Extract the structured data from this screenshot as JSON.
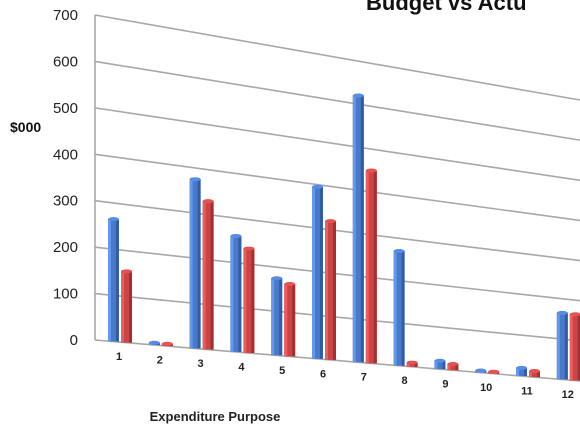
{
  "chart_data": {
    "type": "bar",
    "title": "Budget vs Actu",
    "xlabel": "Expenditure Purpose",
    "ylabel": "$000",
    "ylim": [
      0,
      700
    ],
    "yticks": [
      0,
      100,
      200,
      300,
      400,
      500,
      600,
      700
    ],
    "categories": [
      "1",
      "2",
      "3",
      "4",
      "5",
      "6",
      "7",
      "8",
      "9",
      "10",
      "11",
      "12"
    ],
    "series": [
      {
        "values": [
          265,
          5,
          375,
          260,
          175,
          395,
          620,
          270,
          20,
          5,
          20,
          165
        ],
        "color": "#4a7ac7"
      },
      {
        "values": [
          155,
          5,
          330,
          235,
          165,
          320,
          450,
          10,
          15,
          3,
          15,
          165
        ],
        "color": "#c84646"
      }
    ],
    "grid": true,
    "style": "3d-perspective"
  }
}
